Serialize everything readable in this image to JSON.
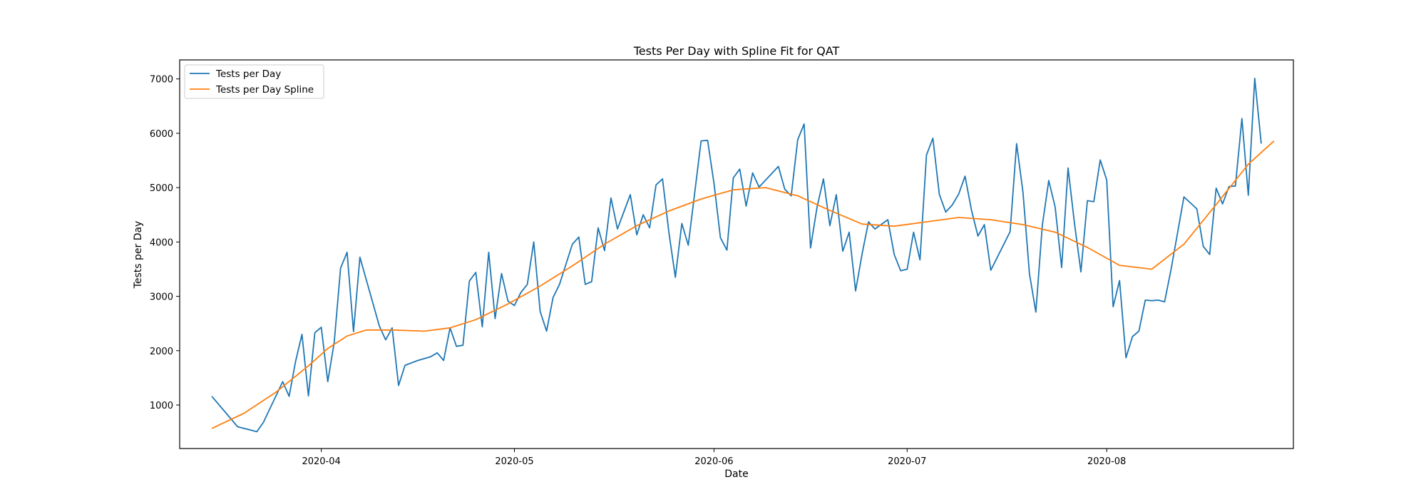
{
  "chart_data": {
    "type": "line",
    "title": "Tests Per Day with Spline Fit for QAT",
    "xlabel": "Date",
    "ylabel": "Tests per Day",
    "x_axis": {
      "range": [
        "2020-03-10",
        "2020-08-30"
      ],
      "ticks": [
        {
          "value": "2020-04-01",
          "label": "2020-04"
        },
        {
          "value": "2020-05-01",
          "label": "2020-05"
        },
        {
          "value": "2020-06-01",
          "label": "2020-06"
        },
        {
          "value": "2020-07-01",
          "label": "2020-07"
        },
        {
          "value": "2020-08-01",
          "label": "2020-08"
        }
      ]
    },
    "y_axis": {
      "range": [
        200,
        7350
      ],
      "ticks": [
        1000,
        2000,
        3000,
        4000,
        5000,
        6000,
        7000
      ]
    },
    "grid": false,
    "legend": {
      "position": "top-left"
    },
    "series": [
      {
        "name": "Tests per Day",
        "color": "#1f77b4",
        "points": [
          [
            "2020-03-15",
            1160
          ],
          [
            "2020-03-19",
            600
          ],
          [
            "2020-03-22",
            510
          ],
          [
            "2020-03-23",
            680
          ],
          [
            "2020-03-26",
            1430
          ],
          [
            "2020-03-27",
            1160
          ],
          [
            "2020-03-28",
            1800
          ],
          [
            "2020-03-29",
            2300
          ],
          [
            "2020-03-30",
            1170
          ],
          [
            "2020-03-31",
            2330
          ],
          [
            "2020-04-01",
            2430
          ],
          [
            "2020-04-02",
            1430
          ],
          [
            "2020-04-03",
            2150
          ],
          [
            "2020-04-04",
            3520
          ],
          [
            "2020-04-05",
            3810
          ],
          [
            "2020-04-06",
            2350
          ],
          [
            "2020-04-07",
            3720
          ],
          [
            "2020-04-10",
            2460
          ],
          [
            "2020-04-11",
            2200
          ],
          [
            "2020-04-12",
            2420
          ],
          [
            "2020-04-13",
            1360
          ],
          [
            "2020-04-14",
            1730
          ],
          [
            "2020-04-16",
            1820
          ],
          [
            "2020-04-18",
            1890
          ],
          [
            "2020-04-19",
            1960
          ],
          [
            "2020-04-20",
            1820
          ],
          [
            "2020-04-21",
            2420
          ],
          [
            "2020-04-22",
            2080
          ],
          [
            "2020-04-23",
            2100
          ],
          [
            "2020-04-24",
            3280
          ],
          [
            "2020-04-25",
            3440
          ],
          [
            "2020-04-26",
            2440
          ],
          [
            "2020-04-27",
            3810
          ],
          [
            "2020-04-28",
            2590
          ],
          [
            "2020-04-29",
            3420
          ],
          [
            "2020-04-30",
            2910
          ],
          [
            "2020-05-01",
            2830
          ],
          [
            "2020-05-02",
            3070
          ],
          [
            "2020-05-03",
            3220
          ],
          [
            "2020-05-04",
            4000
          ],
          [
            "2020-05-05",
            2720
          ],
          [
            "2020-05-06",
            2360
          ],
          [
            "2020-05-07",
            2980
          ],
          [
            "2020-05-08",
            3220
          ],
          [
            "2020-05-10",
            3960
          ],
          [
            "2020-05-11",
            4090
          ],
          [
            "2020-05-12",
            3220
          ],
          [
            "2020-05-13",
            3270
          ],
          [
            "2020-05-14",
            4260
          ],
          [
            "2020-05-15",
            3840
          ],
          [
            "2020-05-16",
            4810
          ],
          [
            "2020-05-17",
            4240
          ],
          [
            "2020-05-19",
            4870
          ],
          [
            "2020-05-20",
            4130
          ],
          [
            "2020-05-21",
            4500
          ],
          [
            "2020-05-22",
            4260
          ],
          [
            "2020-05-23",
            5050
          ],
          [
            "2020-05-24",
            5160
          ],
          [
            "2020-05-25",
            4170
          ],
          [
            "2020-05-26",
            3350
          ],
          [
            "2020-05-27",
            4340
          ],
          [
            "2020-05-28",
            3940
          ],
          [
            "2020-05-30",
            5860
          ],
          [
            "2020-05-31",
            5870
          ],
          [
            "2020-06-01",
            5080
          ],
          [
            "2020-06-02",
            4080
          ],
          [
            "2020-06-03",
            3850
          ],
          [
            "2020-06-04",
            5180
          ],
          [
            "2020-06-05",
            5340
          ],
          [
            "2020-06-06",
            4660
          ],
          [
            "2020-06-07",
            5270
          ],
          [
            "2020-06-08",
            5010
          ],
          [
            "2020-06-11",
            5390
          ],
          [
            "2020-06-12",
            4970
          ],
          [
            "2020-06-13",
            4850
          ],
          [
            "2020-06-14",
            5880
          ],
          [
            "2020-06-15",
            6170
          ],
          [
            "2020-06-16",
            3890
          ],
          [
            "2020-06-17",
            4640
          ],
          [
            "2020-06-18",
            5160
          ],
          [
            "2020-06-19",
            4300
          ],
          [
            "2020-06-20",
            4870
          ],
          [
            "2020-06-21",
            3830
          ],
          [
            "2020-06-22",
            4180
          ],
          [
            "2020-06-23",
            3100
          ],
          [
            "2020-06-24",
            3780
          ],
          [
            "2020-06-25",
            4370
          ],
          [
            "2020-06-26",
            4240
          ],
          [
            "2020-06-28",
            4410
          ],
          [
            "2020-06-29",
            3770
          ],
          [
            "2020-06-30",
            3470
          ],
          [
            "2020-07-01",
            3500
          ],
          [
            "2020-07-02",
            4180
          ],
          [
            "2020-07-03",
            3670
          ],
          [
            "2020-07-04",
            5600
          ],
          [
            "2020-07-05",
            5910
          ],
          [
            "2020-07-06",
            4880
          ],
          [
            "2020-07-07",
            4550
          ],
          [
            "2020-07-08",
            4680
          ],
          [
            "2020-07-09",
            4880
          ],
          [
            "2020-07-10",
            5210
          ],
          [
            "2020-07-11",
            4580
          ],
          [
            "2020-07-12",
            4110
          ],
          [
            "2020-07-13",
            4320
          ],
          [
            "2020-07-14",
            3480
          ],
          [
            "2020-07-17",
            4190
          ],
          [
            "2020-07-18",
            5810
          ],
          [
            "2020-07-19",
            4910
          ],
          [
            "2020-07-20",
            3420
          ],
          [
            "2020-07-21",
            2710
          ],
          [
            "2020-07-22",
            4310
          ],
          [
            "2020-07-23",
            5130
          ],
          [
            "2020-07-24",
            4640
          ],
          [
            "2020-07-25",
            3530
          ],
          [
            "2020-07-26",
            5360
          ],
          [
            "2020-07-27",
            4340
          ],
          [
            "2020-07-28",
            3450
          ],
          [
            "2020-07-29",
            4760
          ],
          [
            "2020-07-30",
            4740
          ],
          [
            "2020-07-31",
            5510
          ],
          [
            "2020-08-01",
            5140
          ],
          [
            "2020-08-02",
            2810
          ],
          [
            "2020-08-03",
            3290
          ],
          [
            "2020-08-04",
            1870
          ],
          [
            "2020-08-05",
            2260
          ],
          [
            "2020-08-06",
            2360
          ],
          [
            "2020-08-07",
            2930
          ],
          [
            "2020-08-08",
            2920
          ],
          [
            "2020-08-09",
            2930
          ],
          [
            "2020-08-10",
            2900
          ],
          [
            "2020-08-11",
            3500
          ],
          [
            "2020-08-13",
            4830
          ],
          [
            "2020-08-15",
            4610
          ],
          [
            "2020-08-16",
            3920
          ],
          [
            "2020-08-17",
            3770
          ],
          [
            "2020-08-18",
            4990
          ],
          [
            "2020-08-19",
            4700
          ],
          [
            "2020-08-20",
            5020
          ],
          [
            "2020-08-21",
            5030
          ],
          [
            "2020-08-22",
            6270
          ],
          [
            "2020-08-23",
            4860
          ],
          [
            "2020-08-24",
            7010
          ],
          [
            "2020-08-25",
            5810
          ]
        ]
      },
      {
        "name": "Tests per Day Spline",
        "color": "#ff7f0e",
        "points": [
          [
            "2020-03-15",
            570
          ],
          [
            "2020-03-20",
            850
          ],
          [
            "2020-03-25",
            1240
          ],
          [
            "2020-03-30",
            1720
          ],
          [
            "2020-04-02",
            2040
          ],
          [
            "2020-04-05",
            2270
          ],
          [
            "2020-04-08",
            2380
          ],
          [
            "2020-04-12",
            2380
          ],
          [
            "2020-04-17",
            2360
          ],
          [
            "2020-04-21",
            2420
          ],
          [
            "2020-04-25",
            2570
          ],
          [
            "2020-04-30",
            2860
          ],
          [
            "2020-05-05",
            3190
          ],
          [
            "2020-05-10",
            3560
          ],
          [
            "2020-05-15",
            3960
          ],
          [
            "2020-05-20",
            4300
          ],
          [
            "2020-05-25",
            4570
          ],
          [
            "2020-05-30",
            4790
          ],
          [
            "2020-06-04",
            4960
          ],
          [
            "2020-06-09",
            5000
          ],
          [
            "2020-06-14",
            4850
          ],
          [
            "2020-06-19",
            4580
          ],
          [
            "2020-06-24",
            4330
          ],
          [
            "2020-06-29",
            4290
          ],
          [
            "2020-07-04",
            4370
          ],
          [
            "2020-07-09",
            4450
          ],
          [
            "2020-07-14",
            4410
          ],
          [
            "2020-07-19",
            4320
          ],
          [
            "2020-07-24",
            4180
          ],
          [
            "2020-07-29",
            3900
          ],
          [
            "2020-08-03",
            3570
          ],
          [
            "2020-08-08",
            3500
          ],
          [
            "2020-08-13",
            3960
          ],
          [
            "2020-08-18",
            4690
          ],
          [
            "2020-08-23",
            5430
          ],
          [
            "2020-08-27",
            5860
          ]
        ]
      }
    ]
  }
}
